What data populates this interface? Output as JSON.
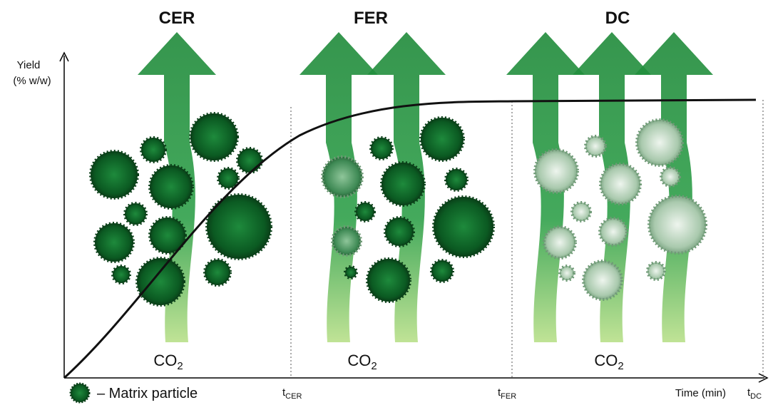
{
  "stages": [
    {
      "title": "CER",
      "gas": {
        "text": "CO",
        "subscript": "2"
      }
    },
    {
      "title": "FER",
      "gas": {
        "text": "CO",
        "subscript": "2"
      }
    },
    {
      "title": "DC",
      "gas": {
        "text": "CO",
        "subscript": "2"
      }
    }
  ],
  "y_axis_label": [
    "Yield",
    "(% w/w)"
  ],
  "x_axis_label": "Time (min)",
  "time_markers": [
    {
      "text": "t",
      "subscript": "CER"
    },
    {
      "text": "t",
      "subscript": "FER"
    },
    {
      "text": "t",
      "subscript": "DC"
    }
  ],
  "legend": "– Matrix particle"
}
